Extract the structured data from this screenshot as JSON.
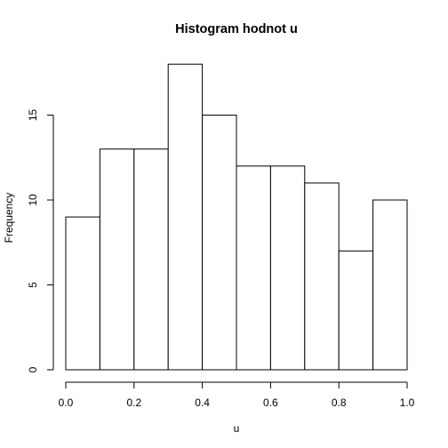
{
  "chart_data": {
    "type": "bar",
    "title": "Histogram hodnot u",
    "xlabel": "u",
    "ylabel": "Frequency",
    "bin_edges": [
      0.0,
      0.1,
      0.2,
      0.3,
      0.4,
      0.5,
      0.6,
      0.7,
      0.8,
      0.9,
      1.0
    ],
    "values": [
      9,
      13,
      13,
      18,
      15,
      12,
      12,
      11,
      7,
      10
    ],
    "xlim": [
      0.0,
      1.0
    ],
    "ylim": [
      0,
      18
    ],
    "x_ticks": [
      "0.0",
      "0.2",
      "0.4",
      "0.6",
      "0.8",
      "1.0"
    ],
    "y_ticks": [
      "0",
      "5",
      "10",
      "15"
    ],
    "grid": false,
    "legend": "none",
    "colors": {
      "bar_fill": "#ffffff",
      "bar_stroke": "#000000"
    }
  }
}
